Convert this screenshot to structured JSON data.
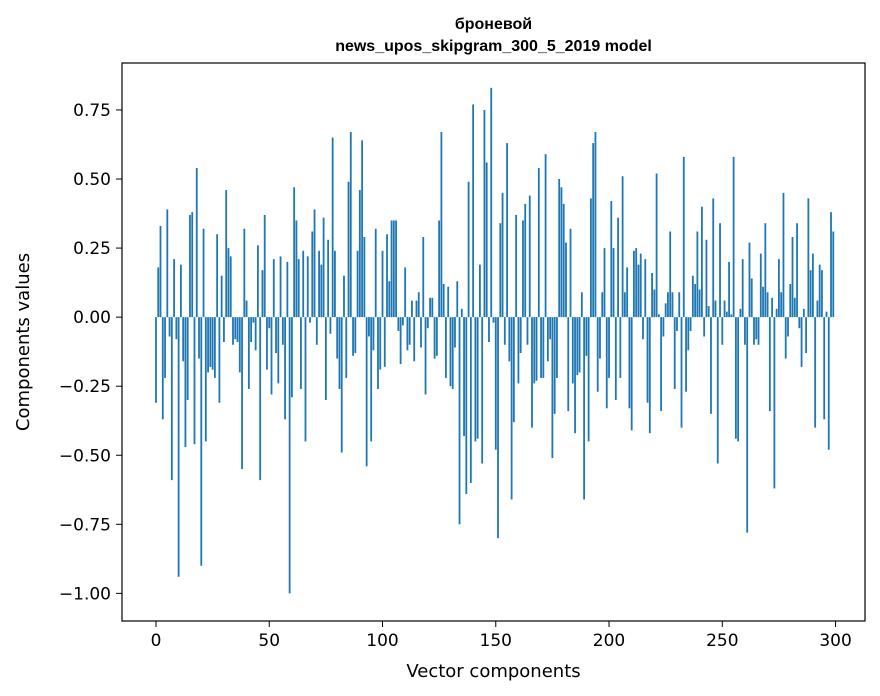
{
  "chart_data": {
    "type": "bar",
    "title_line1": "броневой",
    "title_line2": "news_upos_skipgram_300_5_2019 model",
    "xlabel": "Vector components",
    "ylabel": "Components values",
    "xlim": [
      -15,
      313
    ],
    "ylim": [
      -1.1,
      0.92
    ],
    "xticks": [
      0,
      50,
      100,
      150,
      200,
      250,
      300
    ],
    "xtick_labels": [
      "0",
      "50",
      "100",
      "150",
      "200",
      "250",
      "300"
    ],
    "yticks": [
      -1.0,
      -0.75,
      -0.5,
      -0.25,
      0.0,
      0.25,
      0.5,
      0.75
    ],
    "ytick_labels": [
      "−1.00",
      "−0.75",
      "−0.50",
      "−0.25",
      "0.00",
      "0.25",
      "0.50",
      "0.75"
    ],
    "bar_color": "#1f77b4",
    "grid": false,
    "values": [
      -0.31,
      0.18,
      0.33,
      -0.37,
      -0.22,
      0.39,
      -0.07,
      -0.59,
      0.21,
      -0.08,
      -0.94,
      0.19,
      -0.16,
      -0.47,
      -0.3,
      0.37,
      0.38,
      -0.46,
      0.54,
      -0.15,
      -0.9,
      0.32,
      -0.45,
      -0.2,
      -0.18,
      -0.19,
      -0.22,
      0.3,
      -0.31,
      0.15,
      -0.09,
      0.46,
      0.25,
      0.22,
      -0.1,
      -0.08,
      -0.09,
      -0.2,
      -0.55,
      0.32,
      0.06,
      -0.26,
      -0.09,
      -0.02,
      -0.12,
      0.26,
      -0.59,
      0.17,
      0.37,
      -0.19,
      -0.04,
      -0.28,
      0.21,
      -0.13,
      -0.24,
      0.22,
      -0.1,
      -0.37,
      0.2,
      -1.0,
      -0.29,
      0.47,
      0.35,
      0.21,
      -0.26,
      0.24,
      -0.45,
      0.22,
      -0.02,
      0.31,
      0.39,
      -0.1,
      0.24,
      0.19,
      0.36,
      -0.3,
      0.28,
      -0.06,
      0.65,
      0.24,
      -0.15,
      -0.26,
      -0.49,
      0.15,
      -0.22,
      0.49,
      0.67,
      -0.14,
      -0.13,
      0.24,
      0.46,
      0.64,
      0.29,
      -0.54,
      -0.07,
      -0.45,
      -0.12,
      0.32,
      -0.26,
      -0.19,
      0.24,
      -0.18,
      0.3,
      0.13,
      0.35,
      0.35,
      0.35,
      -0.05,
      -0.17,
      -0.03,
      0.18,
      -0.12,
      -0.1,
      0.06,
      -0.16,
      0.06,
      0.09,
      -0.11,
      0.29,
      -0.28,
      -0.04,
      0.07,
      0.07,
      -0.15,
      -0.14,
      0.35,
      0.67,
      0.12,
      -0.22,
      0.11,
      -0.25,
      -0.26,
      -0.11,
      0.13,
      -0.75,
      0.03,
      -0.43,
      -0.64,
      0.49,
      -0.6,
      0.77,
      -0.45,
      -0.44,
      0.19,
      -0.53,
      0.75,
      0.56,
      -0.09,
      0.83,
      -0.02,
      -0.48,
      -0.8,
      0.34,
      0.45,
      -0.1,
      0.63,
      -0.16,
      -0.66,
      -0.38,
      0.37,
      -0.24,
      -0.13,
      0.35,
      0.41,
      -0.1,
      0.44,
      -0.4,
      -0.24,
      -0.23,
      0.54,
      -0.22,
      -0.22,
      0.59,
      -0.16,
      -0.08,
      -0.51,
      -0.35,
      -0.22,
      0.5,
      0.47,
      0.41,
      0.27,
      -0.34,
      0.32,
      -0.24,
      -0.42,
      -0.21,
      -0.2,
      0.09,
      -0.66,
      -0.14,
      -0.45,
      0.43,
      0.63,
      0.67,
      -0.27,
      -0.15,
      0.09,
      0.25,
      -0.33,
      -0.22,
      0.42,
      0.25,
      -0.3,
      0.36,
      -0.22,
      0.51,
      0.09,
      0.18,
      -0.33,
      -0.41,
      0.24,
      0.25,
      0.19,
      0.23,
      -0.08,
      0.21,
      -0.31,
      -0.42,
      0.16,
      0.1,
      0.52,
      0.01,
      -0.34,
      -0.07,
      0.05,
      0.09,
      0.31,
      0.09,
      -0.26,
      -0.05,
      0.09,
      -0.4,
      0.58,
      -0.27,
      -0.12,
      -0.05,
      0.15,
      0.12,
      0.31,
      0.1,
      0.4,
      -0.07,
      0.28,
      0.04,
      -0.35,
      0.43,
      0.06,
      -0.53,
      0.34,
      -0.1,
      0.06,
      0.02,
      0.2,
      0.01,
      0.58,
      -0.44,
      -0.45,
      0.03,
      0.21,
      -0.1,
      -0.78,
      0.27,
      0.14,
      -0.1,
      -0.08,
      -0.1,
      0.23,
      0.11,
      0.34,
      0.09,
      -0.34,
      0.07,
      -0.62,
      0.03,
      0.21,
      0.09,
      0.45,
      -0.15,
      -0.07,
      0.12,
      0.29,
      0.07,
      0.34,
      -0.04,
      -0.18,
      0.03,
      -0.13,
      0.43,
      0.17,
      0.23,
      -0.4,
      0.06,
      0.19,
      0.17,
      -0.37,
      0.02,
      -0.48,
      0.38,
      0.31
    ]
  }
}
